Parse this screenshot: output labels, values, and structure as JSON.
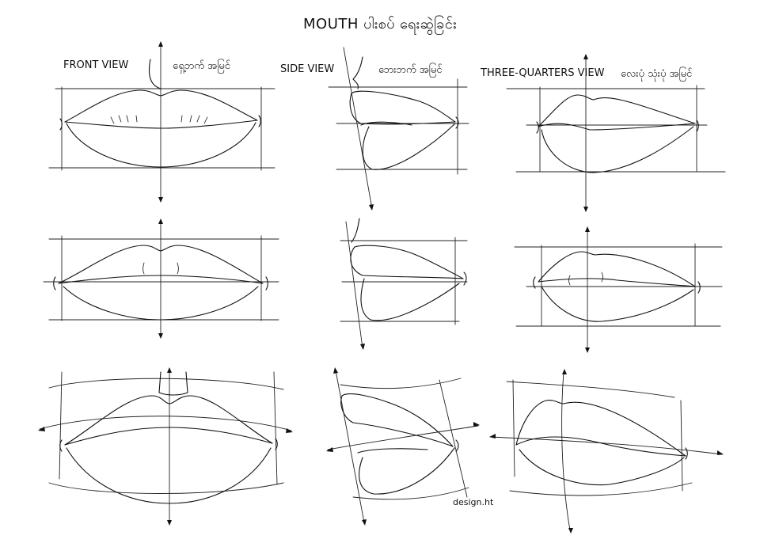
{
  "title": "MOUTH ပါးစပ် ရေးဆွဲခြင်း",
  "views": {
    "front": {
      "label": "FRONT VIEW",
      "label_mm": "ရှေ့ဘက် အမြင်"
    },
    "side": {
      "label": "SIDE VIEW",
      "label_mm": "ဘေးဘက် အမြင်"
    },
    "three_quarters": {
      "label": "THREE-QUARTERS VIEW",
      "label_mm": "လေးပုံ သုံးပုံ အမြင်"
    }
  },
  "credit": "design.ht"
}
